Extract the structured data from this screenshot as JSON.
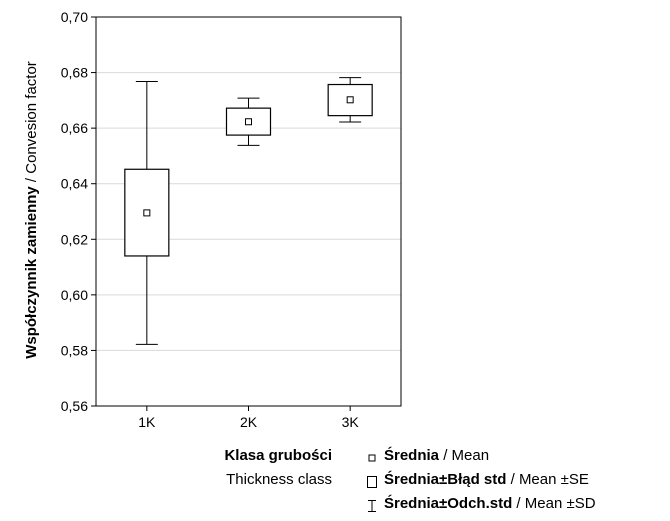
{
  "chart_data": {
    "type": "box",
    "categories": [
      "1K",
      "2K",
      "3K"
    ],
    "series": [
      {
        "name": "Średnia / Mean",
        "values": [
          0.6295,
          0.6623,
          0.6702
        ]
      },
      {
        "name": "Średnia±Błąd std / Mean ±SE",
        "lower": [
          0.614,
          0.6575,
          0.6645
        ],
        "upper": [
          0.6452,
          0.6672,
          0.6757
        ]
      },
      {
        "name": "Średnia±Odch.std / Mean ±SD",
        "lower": [
          0.5822,
          0.6538,
          0.6622
        ],
        "upper": [
          0.6768,
          0.6708,
          0.6782
        ]
      }
    ],
    "ylim": [
      0.56,
      0.7
    ],
    "yticks": [
      "0,56",
      "0,58",
      "0,60",
      "0,62",
      "0,64",
      "0,66",
      "0,68",
      "0,70"
    ],
    "ylabel_bold": "Współczynnik zamienny",
    "ylabel_rest": " / Convesion factor",
    "xlabel_bold": "Klasa grubości",
    "xlabel_rest": "Thickness class",
    "grid": true,
    "legend": [
      {
        "bold": "Średnia",
        "rest": " / Mean",
        "symbol": "point"
      },
      {
        "bold": "Średnia±Błąd std",
        "rest": " / Mean ±SE",
        "symbol": "box"
      },
      {
        "bold": "Średnia±Odch.std",
        "rest": " / Mean ±SD",
        "symbol": "whisker"
      }
    ]
  }
}
